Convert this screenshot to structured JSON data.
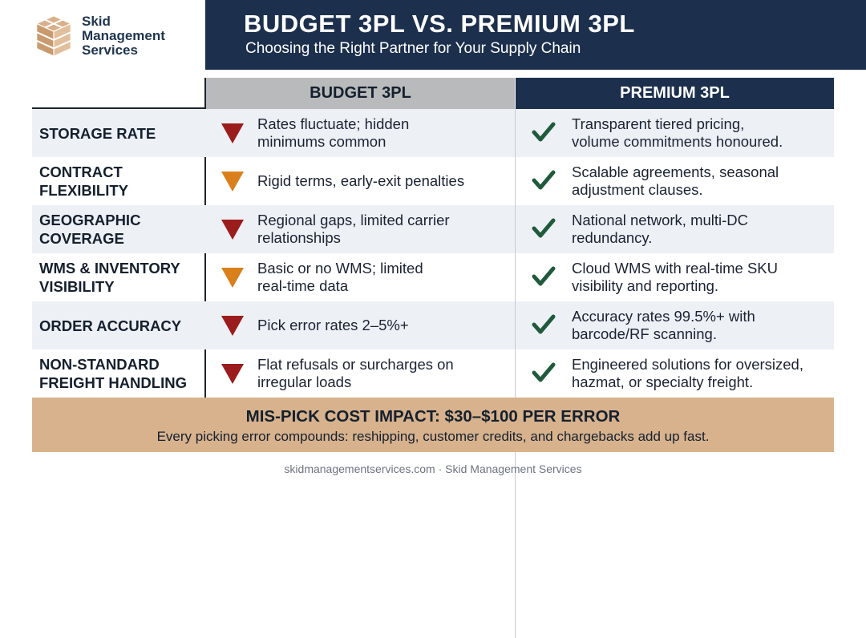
{
  "brand": {
    "logo_lines": [
      "Skid",
      "Management",
      "Services"
    ],
    "logo_icon": "pallet-logo-icon"
  },
  "banner": {
    "title": "BUDGET 3PL VS. PREMIUM 3PL",
    "subtitle": "Choosing the Right Partner for Your Supply Chain"
  },
  "table": {
    "columns": {
      "budget": "BUDGET 3PL",
      "premium": "PREMIUM 3PL"
    },
    "rows": [
      {
        "label": "STORAGE RATE",
        "budget": "Rates fluctuate; hidden\nminimums common",
        "budget_severity": "high",
        "premium": "Transparent tiered pricing,\nvolume commitments honoured."
      },
      {
        "label": "CONTRACT\nFLEXIBILITY",
        "budget": "Rigid terms, early-exit penalties",
        "budget_severity": "medium",
        "premium": "Scalable agreements, seasonal\nadjustment clauses."
      },
      {
        "label": "GEOGRAPHIC\nCOVERAGE",
        "budget": "Regional gaps, limited carrier\nrelationships",
        "budget_severity": "high",
        "premium": "National network, multi-DC\nredundancy."
      },
      {
        "label": "WMS & INVENTORY\nVISIBILITY",
        "budget": "Basic or no WMS; limited\nreal-time data",
        "budget_severity": "medium",
        "premium": "Cloud WMS with real-time SKU\nvisibility and reporting."
      },
      {
        "label": "ORDER ACCURACY",
        "budget": "Pick error rates 2–5%+",
        "budget_severity": "high",
        "premium": "Accuracy rates 99.5%+ with\nbarcode/RF scanning."
      },
      {
        "label": "NON-STANDARD\nFREIGHT HANDLING",
        "budget": "Flat refusals or surcharges on\nirregular loads",
        "budget_severity": "high",
        "premium": "Engineered solutions for oversized,\nhazmat, or specialty freight."
      }
    ]
  },
  "impact": {
    "headline": "MIS-PICK COST IMPACT: $30–$100 PER ERROR",
    "detail": "Every picking error compounds: reshipping, customer credits, and chargebacks add up fast."
  },
  "footer": {
    "text": "skidmanagementservices.com · Skid Management Services"
  },
  "colors": {
    "navy": "#1c2f4d",
    "budget_header": "#b9babc",
    "warning_high": "#9b1c1c",
    "warning_medium": "#d9801a",
    "check": "#1f5a3a",
    "impact_bg": "#d7b28d"
  }
}
